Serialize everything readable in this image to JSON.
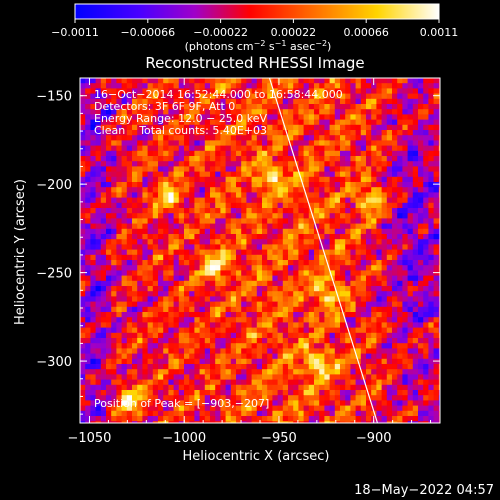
{
  "chart_data": {
    "type": "heatmap",
    "title": "Reconstructed RHESSI Image",
    "xlabel": "Heliocentric X (arcsec)",
    "ylabel": "Heliocentric Y (arcsec)",
    "xlim": [
      -1055,
      -865
    ],
    "ylim": [
      -335,
      -140
    ],
    "xticks": [
      -1050,
      -1000,
      -950,
      -900
    ],
    "xtick_labels": [
      "−1050",
      "−1000",
      "−950",
      "−900"
    ],
    "yticks": [
      -300,
      -250,
      -200,
      -150
    ],
    "ytick_labels": [
      "−300",
      "−250",
      "−200",
      "−150"
    ],
    "colorbar": {
      "ticks": [
        -0.0011,
        -0.00066,
        -0.00022,
        0.00022,
        0.00066,
        0.0011
      ],
      "tick_labels": [
        "−0.0011",
        "−0.00066",
        "−0.00022",
        "0.00022",
        "0.00066",
        "0.0011"
      ],
      "unit_main": "(photons cm",
      "unit_exp1": "−2",
      "unit_mid": " s",
      "unit_exp2": "−1",
      "unit_end": " asec",
      "unit_exp3": "−2",
      "unit_close": ")",
      "range": [
        -0.0011,
        0.0011
      ]
    },
    "info_lines": [
      "16−Oct−2014 16:52:44.000 to 16:58:44.000",
      "Detectors: 3F 6F 9F, Att 0",
      "Energy Range: 12.0 − 25.0 keV",
      "Clean    Total counts: 5.40E+03"
    ],
    "peak_label": "Position of Peak = [−903,−207]",
    "peak": [
      -903,
      -207
    ],
    "limb_line": [
      [
        -955,
        -140
      ],
      [
        -898,
        -335
      ]
    ],
    "bright_spots": [
      [
        -903,
        -207
      ],
      [
        -925,
        -260
      ],
      [
        -955,
        -195
      ],
      [
        -985,
        -245
      ],
      [
        -1010,
        -205
      ],
      [
        -930,
        -300
      ],
      [
        -1030,
        -320
      ]
    ]
  },
  "footer": {
    "date": "18−May−2022 04:57"
  }
}
